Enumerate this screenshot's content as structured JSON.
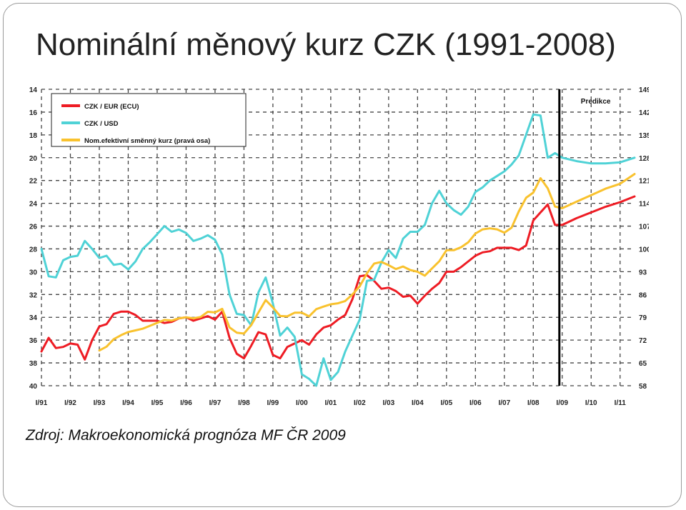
{
  "slide": {
    "title": "Nominální měnový kurz CZK (1991-2008)",
    "source": "Zdroj: Makroekonomická prognóza MF ČR 2009"
  },
  "chart_data": {
    "type": "line",
    "forecast_label": "Predikce",
    "forecast_start": "I/09",
    "x_tick_labels": [
      "I/91",
      "I/92",
      "I/93",
      "I/94",
      "I/95",
      "I/96",
      "I/97",
      "I/98",
      "I/99",
      "I/00",
      "I/01",
      "I/02",
      "I/03",
      "I/04",
      "I/05",
      "I/06",
      "I/07",
      "I/08",
      "I/09",
      "I/10",
      "I/11"
    ],
    "y_left": {
      "ticks": [
        14,
        16,
        18,
        20,
        22,
        24,
        26,
        28,
        30,
        32,
        34,
        36,
        38,
        40
      ],
      "range": [
        14,
        40
      ],
      "inverted": true
    },
    "y_right": {
      "ticks": [
        149,
        142,
        135,
        128,
        121,
        114,
        107,
        100,
        93,
        86,
        79,
        72,
        65,
        58
      ],
      "range": [
        58,
        149
      ]
    },
    "grid": true,
    "legend_position": "top-left",
    "series": [
      {
        "name": "CZK / EUR (ECU)",
        "color": "#ee1c24",
        "axis": "left",
        "x": [
          1991.0,
          1991.25,
          1991.5,
          1991.75,
          1992.0,
          1992.25,
          1992.5,
          1992.75,
          1993.0,
          1993.25,
          1993.5,
          1993.75,
          1994.0,
          1994.25,
          1994.5,
          1994.75,
          1995.0,
          1995.25,
          1995.5,
          1995.75,
          1996.0,
          1996.25,
          1996.5,
          1996.75,
          1997.0,
          1997.25,
          1997.5,
          1997.75,
          1998.0,
          1998.25,
          1998.5,
          1998.75,
          1999.0,
          1999.25,
          1999.5,
          1999.75,
          2000.0,
          2000.25,
          2000.5,
          2000.75,
          2001.0,
          2001.25,
          2001.5,
          2001.75,
          2002.0,
          2002.25,
          2002.5,
          2002.75,
          2003.0,
          2003.25,
          2003.5,
          2003.75,
          2004.0,
          2004.25,
          2004.5,
          2004.75,
          2005.0,
          2005.25,
          2005.5,
          2005.75,
          2006.0,
          2006.25,
          2006.5,
          2006.75,
          2007.0,
          2007.25,
          2007.5,
          2007.75,
          2008.0,
          2008.25,
          2008.5,
          2008.75,
          2009.0,
          2009.5,
          2010.0,
          2010.5,
          2011.0,
          2011.5
        ],
        "values": [
          37.0,
          35.8,
          36.7,
          36.6,
          36.3,
          36.4,
          37.7,
          36.0,
          34.8,
          34.6,
          33.7,
          33.5,
          33.5,
          33.8,
          34.3,
          34.3,
          34.3,
          34.5,
          34.4,
          34.1,
          34.0,
          34.3,
          34.1,
          33.9,
          34.2,
          33.5,
          35.8,
          37.2,
          37.6,
          36.5,
          35.3,
          35.5,
          37.3,
          37.6,
          36.6,
          36.3,
          36.0,
          36.4,
          35.5,
          34.9,
          34.7,
          34.2,
          33.8,
          32.4,
          30.4,
          30.3,
          30.8,
          31.5,
          31.4,
          31.7,
          32.2,
          32.1,
          32.8,
          32.1,
          31.5,
          31.0,
          30.0,
          30.0,
          29.6,
          29.1,
          28.6,
          28.3,
          28.2,
          27.9,
          27.9,
          27.9,
          28.1,
          27.7,
          25.5,
          24.8,
          24.1,
          25.9,
          25.9,
          25.3,
          24.8,
          24.3,
          23.9,
          23.4
        ]
      },
      {
        "name": "CZK / USD",
        "color": "#4fd2d6",
        "axis": "left",
        "x": [
          1991.0,
          1991.25,
          1991.5,
          1991.75,
          1992.0,
          1992.25,
          1992.5,
          1992.75,
          1993.0,
          1993.25,
          1993.5,
          1993.75,
          1994.0,
          1994.25,
          1994.5,
          1994.75,
          1995.0,
          1995.25,
          1995.5,
          1995.75,
          1996.0,
          1996.25,
          1996.5,
          1996.75,
          1997.0,
          1997.25,
          1997.5,
          1997.75,
          1998.0,
          1998.25,
          1998.5,
          1998.75,
          1999.0,
          1999.25,
          1999.5,
          1999.75,
          2000.0,
          2000.25,
          2000.5,
          2000.75,
          2001.0,
          2001.25,
          2001.5,
          2001.75,
          2002.0,
          2002.25,
          2002.5,
          2002.75,
          2003.0,
          2003.25,
          2003.5,
          2003.75,
          2004.0,
          2004.25,
          2004.5,
          2004.75,
          2005.0,
          2005.25,
          2005.5,
          2005.75,
          2006.0,
          2006.25,
          2006.5,
          2006.75,
          2007.0,
          2007.25,
          2007.5,
          2007.75,
          2008.0,
          2008.25,
          2008.5,
          2008.75,
          2009.0,
          2009.5,
          2010.0,
          2010.5,
          2011.0,
          2011.5
        ],
        "values": [
          28.0,
          30.4,
          30.5,
          29.0,
          28.7,
          28.6,
          27.3,
          28.0,
          28.8,
          28.6,
          29.4,
          29.3,
          29.8,
          29.1,
          28.0,
          27.4,
          26.7,
          26.0,
          26.5,
          26.3,
          26.6,
          27.3,
          27.1,
          26.8,
          27.2,
          28.5,
          32.0,
          33.7,
          33.8,
          34.7,
          31.8,
          30.5,
          32.8,
          35.6,
          34.9,
          35.7,
          39.0,
          39.4,
          40.0,
          37.6,
          39.5,
          38.8,
          37.0,
          35.6,
          34.2,
          30.8,
          30.7,
          29.2,
          28.1,
          28.8,
          27.1,
          26.5,
          26.5,
          25.9,
          24.0,
          22.9,
          24.0,
          24.6,
          25.0,
          24.3,
          23.0,
          22.6,
          22.0,
          21.6,
          21.2,
          20.6,
          19.8,
          18.0,
          16.2,
          16.3,
          20.0,
          19.6,
          20.0,
          20.3,
          20.5,
          20.5,
          20.4,
          20.0
        ]
      },
      {
        "name": "Nom.efektivní směnný kurz (pravá osa)",
        "color": "#f9c22e",
        "axis": "right",
        "x": [
          1993.0,
          1993.25,
          1993.5,
          1993.75,
          1994.0,
          1994.25,
          1994.5,
          1994.75,
          1995.0,
          1995.25,
          1995.5,
          1995.75,
          1996.0,
          1996.25,
          1996.5,
          1996.75,
          1997.0,
          1997.25,
          1997.5,
          1997.75,
          1998.0,
          1998.25,
          1998.5,
          1998.75,
          1999.0,
          1999.25,
          1999.5,
          1999.75,
          2000.0,
          2000.25,
          2000.5,
          2000.75,
          2001.0,
          2001.25,
          2001.5,
          2001.75,
          2002.0,
          2002.25,
          2002.5,
          2002.75,
          2003.0,
          2003.25,
          2003.5,
          2003.75,
          2004.0,
          2004.25,
          2004.5,
          2004.75,
          2005.0,
          2005.25,
          2005.5,
          2005.75,
          2006.0,
          2006.25,
          2006.5,
          2006.75,
          2007.0,
          2007.25,
          2007.5,
          2007.75,
          2008.0,
          2008.25,
          2008.5,
          2008.75,
          2009.0,
          2009.5,
          2010.0,
          2010.5,
          2011.0,
          2011.5
        ],
        "values": [
          68.8,
          70.0,
          72.3,
          73.5,
          74.5,
          75.0,
          75.5,
          76.4,
          77.3,
          78.2,
          78.0,
          78.7,
          79.0,
          78.7,
          79.1,
          80.7,
          80.5,
          81.6,
          75.9,
          74.3,
          74.0,
          76.6,
          80.5,
          84.3,
          82.0,
          79.4,
          79.3,
          80.4,
          80.4,
          79.3,
          81.5,
          82.3,
          83.0,
          83.3,
          84.0,
          86.0,
          88.5,
          92.5,
          95.5,
          96.0,
          95.0,
          93.8,
          94.6,
          93.5,
          93.0,
          91.8,
          94.0,
          96.2,
          99.6,
          99.6,
          100.5,
          102.0,
          104.7,
          106.0,
          106.3,
          106.0,
          105.0,
          106.5,
          111.5,
          115.7,
          117.3,
          121.7,
          118.6,
          113.0,
          112.5,
          114.5,
          116.5,
          118.5,
          120.0,
          123.0
        ]
      }
    ]
  }
}
